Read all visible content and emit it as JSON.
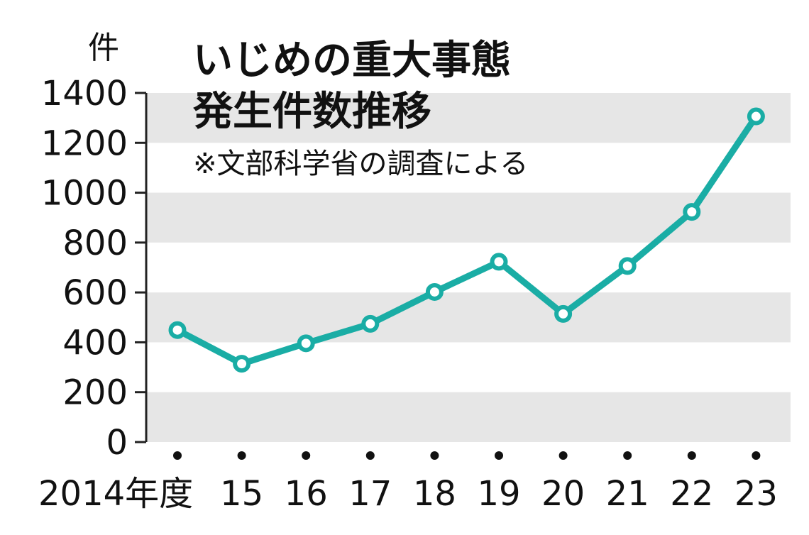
{
  "chart_data": {
    "type": "line",
    "title": "いじめの重大事態",
    "title_line2": "発生件数推移",
    "note": "※文部科学省の調査による",
    "ylabel": "件",
    "categories": [
      "2014年度",
      "15",
      "16",
      "17",
      "18",
      "19",
      "20",
      "21",
      "22",
      "23"
    ],
    "values": [
      449,
      314,
      396,
      474,
      602,
      723,
      514,
      706,
      923,
      1306
    ],
    "ylim": [
      0,
      1400
    ],
    "yticks": [
      0,
      200,
      400,
      600,
      800,
      1000,
      1200,
      1400
    ],
    "grid": "alternating horizontal bands",
    "colors": {
      "line": "#1aada5",
      "band": "#e6e6e6"
    }
  }
}
